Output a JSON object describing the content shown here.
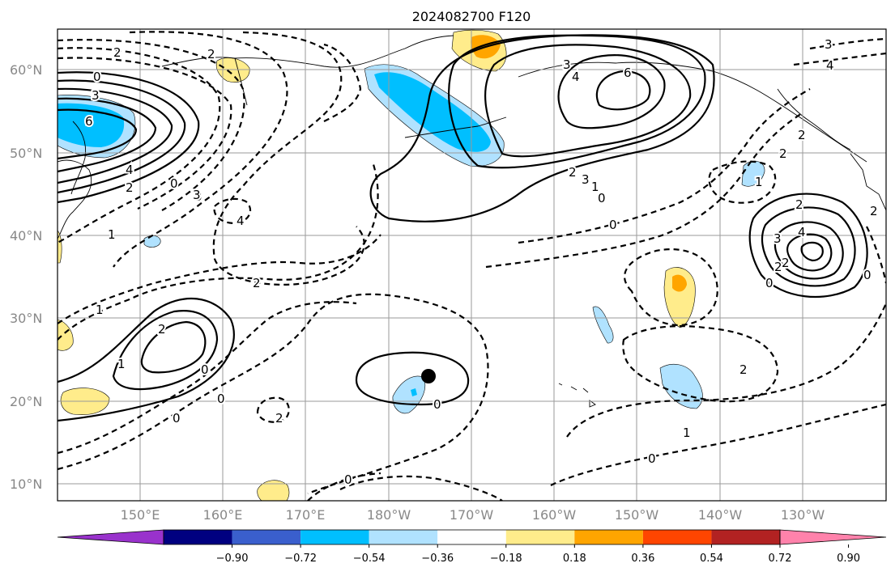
{
  "title": "2024082700 F120",
  "map": {
    "lat_labels": [
      "60°N",
      "50°N",
      "40°N",
      "30°N",
      "20°N",
      "10°N"
    ],
    "lon_labels": [
      "150°E",
      "160°E",
      "170°E",
      "180°W",
      "170°W",
      "160°W",
      "150°W",
      "140°W",
      "130°W"
    ],
    "lat_values": [
      60,
      50,
      40,
      30,
      20,
      10
    ],
    "lon_values": [
      150,
      160,
      170,
      180,
      190,
      200,
      210,
      220,
      230
    ],
    "extent": {
      "lon_min": 140,
      "lon_max": 241,
      "lat_min": 8,
      "lat_max": 65
    },
    "marker": {
      "lon": 185.5,
      "lat": 23
    }
  },
  "colorbar": {
    "ticks": [
      "−0.90",
      "−0.72",
      "−0.54",
      "−0.36",
      "−0.18",
      "0.18",
      "0.36",
      "0.54",
      "0.72",
      "0.90"
    ],
    "colors": [
      "#9932cc",
      "#000080",
      "#3a5fcd",
      "#00bfff",
      "#b0e2ff",
      "#ffffff",
      "#ffec8b",
      "#ffa500",
      "#ff4500",
      "#b22222",
      "#ff82ab"
    ]
  },
  "contour_labels": [
    "2",
    "0",
    "3",
    "6",
    "4",
    "2",
    "0",
    "3",
    "4",
    "1",
    "2",
    "1",
    "0",
    "2",
    "1",
    "0",
    "2",
    "0",
    "0",
    "2",
    "3",
    "4",
    "6",
    "2",
    "1",
    "0",
    "3",
    "0",
    "2",
    "2",
    "2",
    "3",
    "4",
    "2",
    "0",
    "2",
    "0",
    "1",
    "2",
    "1",
    "0",
    "3",
    "2",
    "3",
    "4"
  ],
  "shading_colors": {
    "light_blue": "#b0e2ff",
    "blue": "#00bfff",
    "yellow": "#ffec8b",
    "orange": "#ffa500"
  }
}
